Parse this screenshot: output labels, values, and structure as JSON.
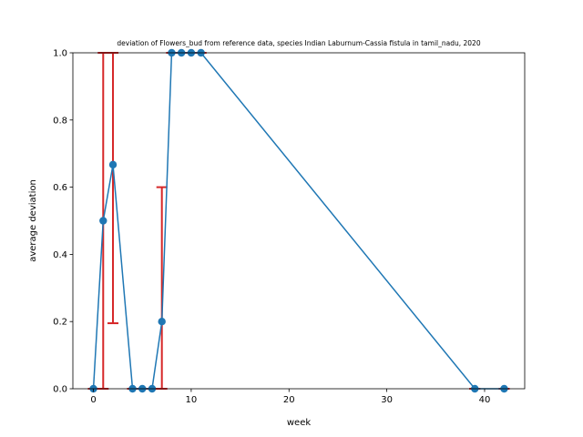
{
  "chart_data": {
    "type": "line",
    "title": "deviation of Flowers_bud from reference data, species Indian Laburnum-Cassia fistula in tamil_nadu, 2020",
    "xlabel": "week",
    "ylabel": "average deviation",
    "xlim": [
      -2.1,
      44.1
    ],
    "ylim": [
      0,
      1
    ],
    "xticks": [
      0,
      10,
      20,
      30,
      40
    ],
    "yticks": [
      0.0,
      0.2,
      0.4,
      0.6,
      0.8,
      1.0
    ],
    "xtick_labels": [
      "0",
      "10",
      "20",
      "30",
      "40"
    ],
    "ytick_labels": [
      "0.0",
      "0.2",
      "0.4",
      "0.6",
      "0.8",
      "1.0"
    ],
    "grid": false,
    "series": [
      {
        "x": [
          0,
          1,
          2,
          4,
          5,
          6,
          7,
          8,
          9,
          10,
          11,
          39,
          42
        ],
        "y": [
          0.0,
          0.5,
          0.667,
          0.0,
          0.0,
          0.0,
          0.2,
          1.0,
          1.0,
          1.0,
          1.0,
          0.0,
          0.0
        ],
        "color": "#1f77b4"
      }
    ],
    "error_bars": {
      "color": "#d62728",
      "bars": [
        {
          "x": 0,
          "low": 0.0,
          "high": 0.0
        },
        {
          "x": 1,
          "low": 0.0,
          "high": 1.0
        },
        {
          "x": 2,
          "low": 0.195,
          "high": 1.0
        },
        {
          "x": 4,
          "low": 0.0,
          "high": 0.0
        },
        {
          "x": 5,
          "low": 0.0,
          "high": 0.0
        },
        {
          "x": 6,
          "low": 0.0,
          "high": 0.0
        },
        {
          "x": 7,
          "low": 0.0,
          "high": 0.6
        },
        {
          "x": 8,
          "low": 1.0,
          "high": 1.0
        },
        {
          "x": 9,
          "low": 1.0,
          "high": 1.0
        },
        {
          "x": 10,
          "low": 1.0,
          "high": 1.0
        },
        {
          "x": 11,
          "low": 1.0,
          "high": 1.0
        },
        {
          "x": 39,
          "low": 0.0,
          "high": 0.0
        },
        {
          "x": 42,
          "low": 0.0,
          "high": 0.0
        }
      ]
    }
  }
}
